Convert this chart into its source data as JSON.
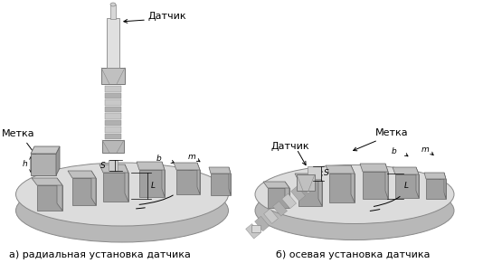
{
  "background_color": "#ffffff",
  "label_a": "а) радиальная установка датчика",
  "label_b": "б) осевая установка датчика",
  "text_datchik": "Датчик",
  "text_metka": "Метка",
  "label_S": "S",
  "label_L": "L",
  "label_b_dim": "b",
  "label_m": "m",
  "label_h": "h",
  "fig_width": 5.34,
  "fig_height": 2.91,
  "dpi": 100
}
